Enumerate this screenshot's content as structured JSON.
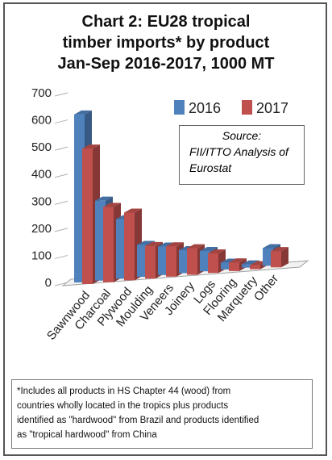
{
  "chart_data": {
    "type": "bar",
    "title_lines": [
      "Chart 2: EU28 tropical",
      "timber imports* by product",
      "Jan-Sep 2016-2017, 1000 MT"
    ],
    "categories": [
      "Sawnwood",
      "Charcoal",
      "Plywood",
      "Moulding",
      "Veneers",
      "Joinery",
      "Logs",
      "Flooring",
      "Marquetry",
      "Other"
    ],
    "series": [
      {
        "name": "2016",
        "color": "#4f81bd",
        "values": [
          620,
          295,
          220,
          118,
          105,
          85,
          75,
          25,
          12,
          65
        ]
      },
      {
        "name": "2017",
        "color": "#c0504d",
        "values": [
          500,
          278,
          250,
          120,
          112,
          98,
          72,
          32,
          15,
          60
        ]
      }
    ],
    "y_ticks": [
      "0",
      "100",
      "200",
      "300",
      "400",
      "500",
      "600",
      "700"
    ],
    "ylim": [
      0,
      700
    ],
    "grid": true,
    "legend_position": "top-right"
  },
  "source_box": {
    "line1": "Source:",
    "line2": "FII/ITTO Analysis of",
    "line3": "Eurostat"
  },
  "footnote": {
    "line1": "*Includes all products in HS Chapter 44 (wood) from",
    "line2": "countries wholly located in the tropics plus products",
    "line3": "identified as \"hardwood\" from Brazil and products identified",
    "line4": "as \"tropical hardwood\" from China"
  }
}
